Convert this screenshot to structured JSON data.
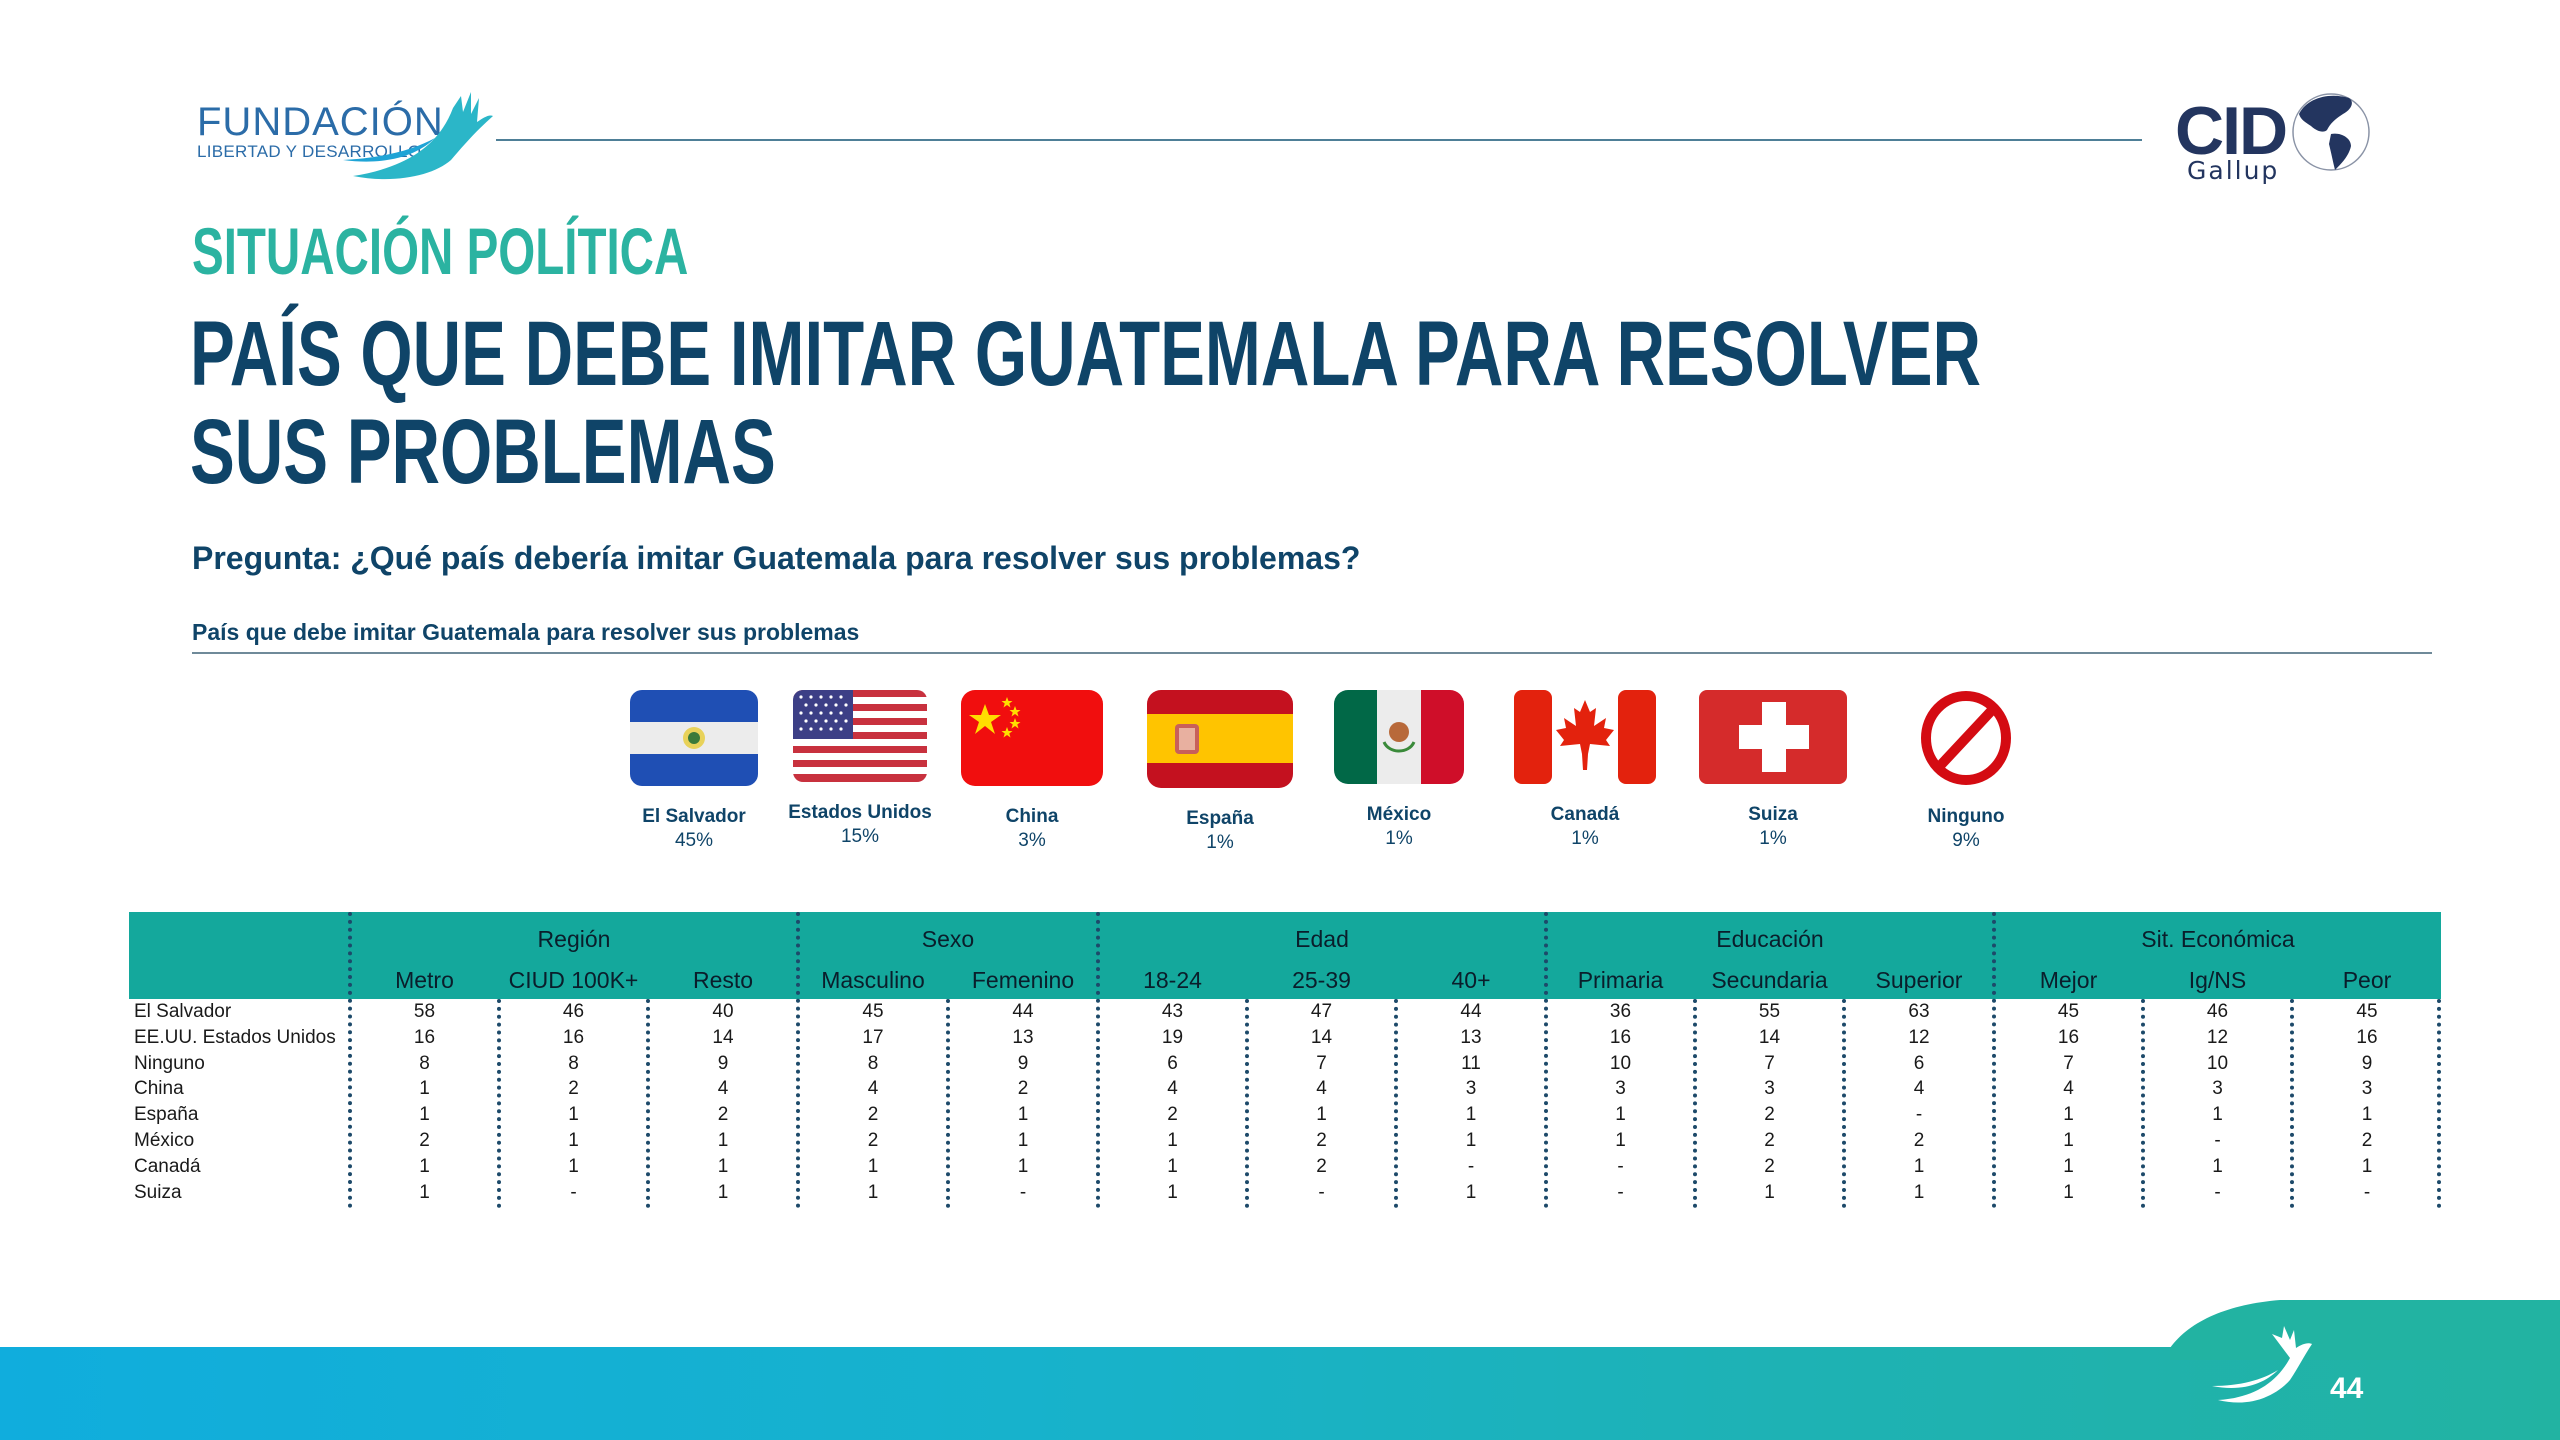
{
  "header": {
    "logo_left": {
      "main": "FUNDACIÓN",
      "sub": "LIBERTAD Y DESARROLLO"
    },
    "logo_right": {
      "main": "CID",
      "sub": "Gallup"
    }
  },
  "titles": {
    "section": "SITUACIÓN POLÍTICA",
    "main_line1": "PAÍS QUE DEBE IMITAR GUATEMALA PARA RESOLVER",
    "main_line2": "SUS PROBLEMAS",
    "question": "Pregunta: ¿Qué país debería imitar Guatemala para resolver sus problemas?",
    "subtitle": "País que debe imitar Guatemala para resolver sus problemas"
  },
  "flags": [
    {
      "name": "El Salvador",
      "pct": "45%",
      "icon": "el-salvador-flag"
    },
    {
      "name": "Estados Unidos",
      "pct": "15%",
      "icon": "usa-flag"
    },
    {
      "name": "China",
      "pct": "3%",
      "icon": "china-flag"
    },
    {
      "name": "España",
      "pct": "1%",
      "icon": "spain-flag"
    },
    {
      "name": "México",
      "pct": "1%",
      "icon": "mexico-flag"
    },
    {
      "name": "Canadá",
      "pct": "1%",
      "icon": "canada-flag"
    },
    {
      "name": "Suiza",
      "pct": "1%",
      "icon": "switzerland-flag"
    },
    {
      "name": "Ninguno",
      "pct": "9%",
      "icon": "prohibited-icon"
    }
  ],
  "table": {
    "groups": [
      {
        "label": "Región",
        "columns": [
          "Metro",
          "CIUD 100K+",
          "Resto"
        ]
      },
      {
        "label": "Sexo",
        "columns": [
          "Masculino",
          "Femenino"
        ]
      },
      {
        "label": "Edad",
        "columns": [
          "18-24",
          "25-39",
          "40+"
        ]
      },
      {
        "label": "Educación",
        "columns": [
          "Primaria",
          "Secundaria",
          "Superior"
        ]
      },
      {
        "label": "Sit. Económica",
        "columns": [
          "Mejor",
          "Ig/NS",
          "Peor"
        ]
      }
    ],
    "rows": [
      {
        "label": "El Salvador",
        "values": [
          "58",
          "46",
          "40",
          "45",
          "44",
          "43",
          "47",
          "44",
          "36",
          "55",
          "63",
          "45",
          "46",
          "45"
        ]
      },
      {
        "label": "EE.UU. Estados Unidos",
        "values": [
          "16",
          "16",
          "14",
          "17",
          "13",
          "19",
          "14",
          "13",
          "16",
          "14",
          "12",
          "16",
          "12",
          "16"
        ]
      },
      {
        "label": "Ninguno",
        "values": [
          "8",
          "8",
          "9",
          "8",
          "9",
          "6",
          "7",
          "11",
          "10",
          "7",
          "6",
          "7",
          "10",
          "9"
        ]
      },
      {
        "label": "China",
        "values": [
          "1",
          "2",
          "4",
          "4",
          "2",
          "4",
          "4",
          "3",
          "3",
          "3",
          "4",
          "4",
          "3",
          "3"
        ]
      },
      {
        "label": "España",
        "values": [
          "1",
          "1",
          "2",
          "2",
          "1",
          "2",
          "1",
          "1",
          "1",
          "2",
          "-",
          "1",
          "1",
          "1"
        ]
      },
      {
        "label": "México",
        "values": [
          "2",
          "1",
          "1",
          "2",
          "1",
          "1",
          "2",
          "1",
          "1",
          "2",
          "2",
          "1",
          "-",
          "2"
        ]
      },
      {
        "label": "Canadá",
        "values": [
          "1",
          "1",
          "1",
          "1",
          "1",
          "1",
          "2",
          "-",
          "-",
          "2",
          "1",
          "1",
          "1",
          "1"
        ]
      },
      {
        "label": "Suiza",
        "values": [
          "1",
          "-",
          "1",
          "1",
          "-",
          "1",
          "-",
          "1",
          "-",
          "1",
          "1",
          "1",
          "-",
          "-"
        ]
      }
    ]
  },
  "chart_data": {
    "type": "table",
    "title": "País que debe imitar Guatemala para resolver sus problemas",
    "summary": {
      "categories": [
        "El Salvador",
        "Estados Unidos",
        "China",
        "España",
        "México",
        "Canadá",
        "Suiza",
        "Ninguno"
      ],
      "values": [
        45,
        15,
        3,
        1,
        1,
        1,
        1,
        9
      ],
      "unit": "%"
    },
    "columns": [
      "Metro",
      "CIUD 100K+",
      "Resto",
      "Masculino",
      "Femenino",
      "18-24",
      "25-39",
      "40+",
      "Primaria",
      "Secundaria",
      "Superior",
      "Mejor",
      "Ig/NS",
      "Peor"
    ],
    "column_groups": {
      "Región": [
        0,
        2
      ],
      "Sexo": [
        3,
        4
      ],
      "Edad": [
        5,
        7
      ],
      "Educación": [
        8,
        10
      ],
      "Sit. Económica": [
        11,
        13
      ]
    }
  },
  "footer": {
    "page_number": "44"
  },
  "colors": {
    "title_teal": "#2bb3a1",
    "title_navy": "#0f4468",
    "table_header": "#14a89c",
    "footer_gradient_start": "#10addd",
    "footer_gradient_end": "#22b3a2"
  }
}
